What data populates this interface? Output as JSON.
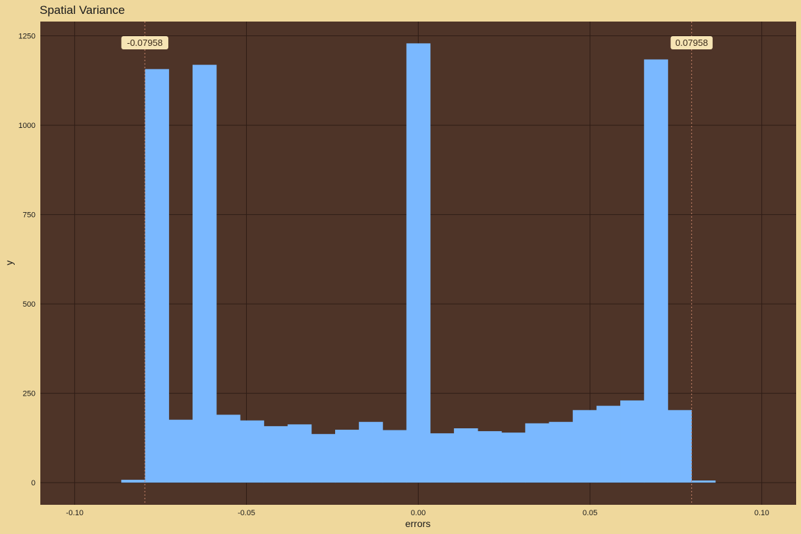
{
  "chart_data": {
    "type": "bar",
    "title": "Spatial Variance",
    "xlabel": "errors",
    "ylabel": "y",
    "xlim": [
      -0.11,
      0.11
    ],
    "ylim": [
      -62,
      1290
    ],
    "xticks": [
      -0.1,
      -0.05,
      0.0,
      0.05,
      0.1
    ],
    "xtick_labels": [
      "-0.10",
      "-0.05",
      "0.00",
      "0.05",
      "0.10"
    ],
    "yticks": [
      0,
      250,
      500,
      750,
      1000,
      1250
    ],
    "ytick_labels": [
      "0",
      "250",
      "500",
      "750",
      "1000",
      "1250"
    ],
    "grid": true,
    "legend": "none",
    "bin_width": 0.006917,
    "bins": [
      {
        "x0": -0.08644,
        "x1": -0.07952,
        "y": 8
      },
      {
        "x0": -0.07952,
        "x1": -0.07261,
        "y": 1157
      },
      {
        "x0": -0.07261,
        "x1": -0.06569,
        "y": 176
      },
      {
        "x0": -0.06569,
        "x1": -0.05877,
        "y": 1169
      },
      {
        "x0": -0.05877,
        "x1": -0.05186,
        "y": 190
      },
      {
        "x0": -0.05186,
        "x1": -0.04494,
        "y": 174
      },
      {
        "x0": -0.04494,
        "x1": -0.03802,
        "y": 158
      },
      {
        "x0": -0.03802,
        "x1": -0.03111,
        "y": 163
      },
      {
        "x0": -0.03111,
        "x1": -0.02419,
        "y": 136
      },
      {
        "x0": -0.02419,
        "x1": -0.01727,
        "y": 148
      },
      {
        "x0": -0.01727,
        "x1": -0.01036,
        "y": 170
      },
      {
        "x0": -0.01036,
        "x1": -0.00344,
        "y": 147
      },
      {
        "x0": -0.00344,
        "x1": 0.00348,
        "y": 1229
      },
      {
        "x0": 0.00348,
        "x1": 0.01039,
        "y": 138
      },
      {
        "x0": 0.01039,
        "x1": 0.01731,
        "y": 152
      },
      {
        "x0": 0.01731,
        "x1": 0.02423,
        "y": 144
      },
      {
        "x0": 0.02423,
        "x1": 0.03114,
        "y": 140
      },
      {
        "x0": 0.03114,
        "x1": 0.03806,
        "y": 166
      },
      {
        "x0": 0.03806,
        "x1": 0.04498,
        "y": 170
      },
      {
        "x0": 0.04498,
        "x1": 0.05189,
        "y": 203
      },
      {
        "x0": 0.05189,
        "x1": 0.05881,
        "y": 215
      },
      {
        "x0": 0.05881,
        "x1": 0.06573,
        "y": 230
      },
      {
        "x0": 0.06573,
        "x1": 0.07264,
        "y": 1184
      },
      {
        "x0": 0.07264,
        "x1": 0.07956,
        "y": 203
      },
      {
        "x0": 0.07956,
        "x1": 0.08648,
        "y": 6
      }
    ],
    "annotations": [
      {
        "x": -0.07958,
        "label": "-0.07958"
      },
      {
        "x": 0.07958,
        "label": "0.07958"
      }
    ],
    "colors": {
      "background": "#efd89c",
      "panel": "#4e3428",
      "grid": "#2f1d16",
      "bar": "#7ab8ff",
      "vline": "#c7836a",
      "label_fill": "#f6e4b4",
      "label_text": "#3a2a1a"
    }
  }
}
